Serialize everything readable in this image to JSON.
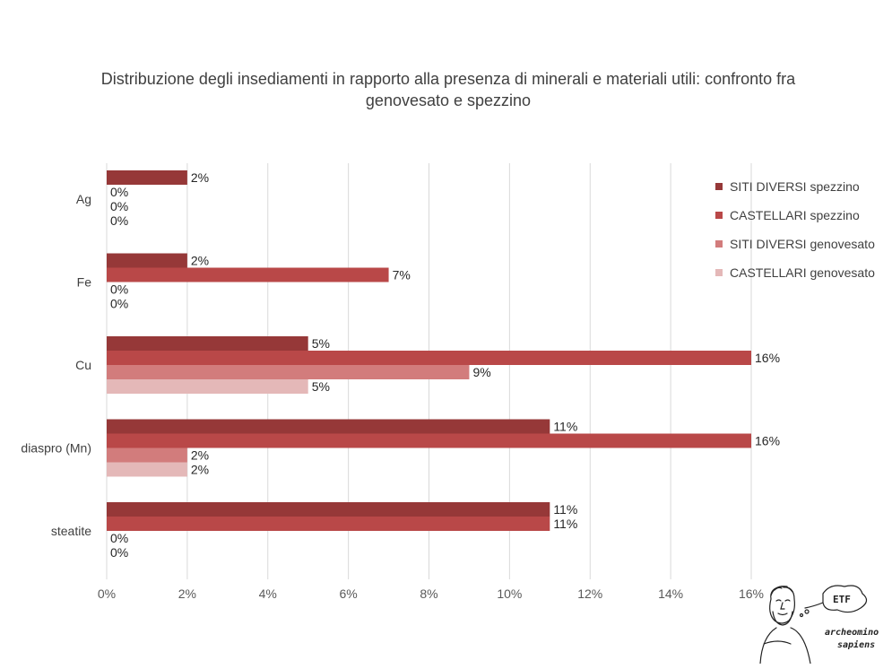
{
  "chart_data": {
    "type": "bar",
    "orientation": "horizontal",
    "title": "Distribuzione degli insediamenti in rapporto alla presenza di minerali e materiali utili:  confronto fra genovesato e spezzino",
    "title_lines": [
      "Distribuzione degli insediamenti in rapporto alla presenza di minerali e materiali utili:  confronto fra",
      "genovesato e spezzino"
    ],
    "categories": [
      "Ag",
      "Fe",
      "Cu",
      "diaspro (Mn)",
      "steatite"
    ],
    "series": [
      {
        "name": "SITI DIVERSI spezzino",
        "color": "#963838",
        "values": [
          2,
          2,
          5,
          11,
          11
        ],
        "labels": [
          "2%",
          "2%",
          "5%",
          "11%",
          "11%"
        ]
      },
      {
        "name": "CASTELLARI spezzino",
        "color": "#b94848",
        "values": [
          0,
          7,
          16,
          16,
          11
        ],
        "labels": [
          "0%",
          "7%",
          "16%",
          "16%",
          "11%"
        ]
      },
      {
        "name": "SITI DIVERSI genovesato",
        "color": "#d27c7c",
        "values": [
          0,
          0,
          9,
          2,
          0
        ],
        "labels": [
          "0%",
          "0%",
          "9%",
          "2%",
          "0%"
        ]
      },
      {
        "name": "CASTELLARI genovesato",
        "color": "#e4b8b8",
        "values": [
          0,
          0,
          5,
          2,
          0
        ],
        "labels": [
          "0%",
          "0%",
          "5%",
          "2%",
          "0%"
        ]
      }
    ],
    "x_ticks": [
      "0%",
      "2%",
      "4%",
      "6%",
      "8%",
      "10%",
      "12%",
      "14%",
      "16%"
    ],
    "xlim": [
      0,
      16
    ],
    "grid": true,
    "legend_position": "top-right"
  },
  "logo": {
    "line1": "archeomino",
    "line2": "sapiens",
    "bubble_text": "ETF"
  }
}
